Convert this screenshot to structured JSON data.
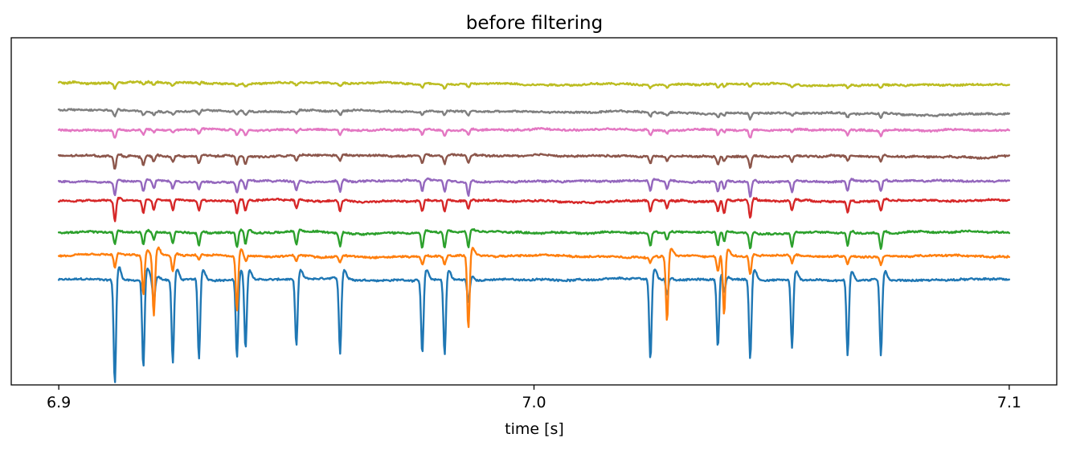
{
  "chart_data": {
    "type": "line",
    "title": "before filtering",
    "xlabel": "time [s]",
    "ylabel": "",
    "xlim": [
      6.89,
      7.11
    ],
    "ylim": [
      -1.0,
      12.2
    ],
    "xticks": [
      {
        "value": 6.9,
        "label": "6.9"
      },
      {
        "value": 7.0,
        "label": "7.0"
      },
      {
        "value": 7.1,
        "label": "7.1"
      }
    ],
    "yticks_visible": false,
    "grid": false,
    "legend": "none",
    "x_start": 6.9,
    "x_end": 7.1,
    "spike_times": [
      6.9118,
      6.9178,
      6.92,
      6.924,
      6.9295,
      6.9375,
      6.9393,
      6.95,
      6.9592,
      6.9765,
      6.9812,
      6.9862,
      7.0245,
      7.028,
      7.0387,
      7.04,
      7.0455,
      7.0543,
      7.066,
      7.073
    ],
    "series": [
      {
        "color": "#1f77b4",
        "offset": 3.0,
        "drift": 0.0,
        "spike_depths": [
          -4.0,
          -3.4,
          -0.9,
          -3.2,
          -3.1,
          -3.0,
          -2.7,
          -2.6,
          -2.9,
          -2.9,
          -2.9,
          -0.9,
          -3.1,
          -0.6,
          -2.6,
          -0.7,
          -3.1,
          -2.6,
          -2.9,
          -2.9
        ]
      },
      {
        "color": "#ff7f0e",
        "offset": 3.9,
        "drift": 0.0,
        "spike_depths": [
          -0.5,
          -1.5,
          -2.3,
          -0.6,
          -0.2,
          -2.1,
          -0.2,
          -0.2,
          -0.2,
          -0.3,
          -0.3,
          -2.8,
          -0.2,
          -2.5,
          -0.6,
          -2.3,
          -0.7,
          -0.3,
          -0.3,
          -0.3
        ]
      },
      {
        "color": "#2ca02c",
        "offset": 4.8,
        "drift": 0.0,
        "spike_depths": [
          -0.45,
          -0.5,
          -0.3,
          -0.4,
          -0.5,
          -0.6,
          -0.5,
          -0.5,
          -0.5,
          -0.6,
          -0.6,
          -0.6,
          -0.5,
          -0.3,
          -0.5,
          -0.4,
          -0.6,
          -0.5,
          -0.5,
          -0.6
        ]
      },
      {
        "color": "#d62728",
        "offset": 6.0,
        "drift": 0.0,
        "spike_depths": [
          -0.8,
          -0.5,
          -0.4,
          -0.4,
          -0.4,
          -0.5,
          -0.4,
          -0.3,
          -0.4,
          -0.4,
          -0.4,
          -0.3,
          -0.4,
          -0.3,
          -0.4,
          -0.5,
          -0.7,
          -0.4,
          -0.4,
          -0.4
        ]
      },
      {
        "color": "#9467bd",
        "offset": 6.75,
        "drift": 0.0,
        "spike_depths": [
          -0.5,
          -0.4,
          -0.3,
          -0.3,
          -0.3,
          -0.4,
          -0.3,
          -0.3,
          -0.4,
          -0.4,
          -0.4,
          -0.5,
          -0.4,
          -0.3,
          -0.4,
          -0.3,
          -0.6,
          -0.4,
          -0.4,
          -0.4
        ]
      },
      {
        "color": "#8c564b",
        "offset": 7.7,
        "drift": 0.0,
        "spike_depths": [
          -0.5,
          -0.3,
          -0.2,
          -0.2,
          -0.3,
          -0.3,
          -0.3,
          -0.2,
          -0.2,
          -0.3,
          -0.3,
          -0.3,
          -0.3,
          -0.2,
          -0.3,
          -0.2,
          -0.4,
          -0.2,
          -0.2,
          -0.2
        ]
      },
      {
        "color": "#e377c2",
        "offset": 8.7,
        "drift": 0.0,
        "spike_depths": [
          -0.3,
          -0.2,
          -0.1,
          -0.1,
          -0.2,
          -0.2,
          -0.2,
          -0.1,
          -0.2,
          -0.2,
          -0.2,
          -0.2,
          -0.2,
          -0.1,
          -0.2,
          -0.1,
          -0.3,
          -0.1,
          -0.2,
          -0.2
        ]
      },
      {
        "color": "#7f7f7f",
        "offset": 9.45,
        "drift": -0.15,
        "spike_depths": [
          -0.25,
          -0.15,
          -0.1,
          -0.1,
          -0.15,
          -0.15,
          -0.15,
          -0.1,
          -0.15,
          -0.15,
          -0.15,
          -0.15,
          -0.15,
          -0.1,
          -0.15,
          -0.1,
          -0.2,
          -0.1,
          -0.15,
          -0.15
        ]
      },
      {
        "color": "#bcbd22",
        "offset": 10.5,
        "drift": -0.1,
        "spike_depths": [
          -0.2,
          -0.1,
          -0.1,
          -0.1,
          -0.1,
          -0.1,
          -0.1,
          -0.1,
          -0.1,
          -0.15,
          -0.15,
          -0.15,
          -0.1,
          -0.1,
          -0.15,
          -0.1,
          -0.15,
          -0.1,
          -0.1,
          -0.15
        ]
      }
    ]
  }
}
